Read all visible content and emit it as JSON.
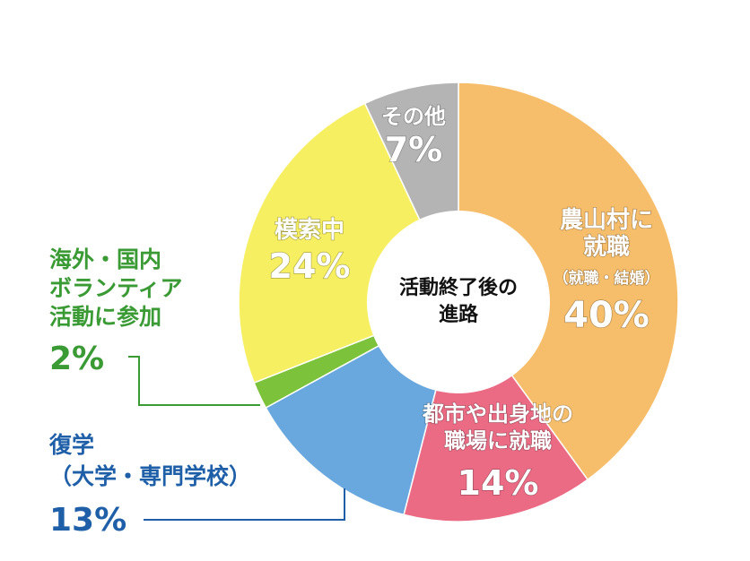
{
  "chart_data": {
    "type": "pie",
    "style": "donut",
    "center_label": [
      "活動終了後の",
      "進路"
    ],
    "slices": [
      {
        "label": [
          "農山村に",
          "就職"
        ],
        "sublabel": "（就職・結婚）",
        "value": 40,
        "value_text": "40%",
        "color": "#F6BE6B"
      },
      {
        "label": [
          "都市や出身地の",
          "職場に就職"
        ],
        "value": 14,
        "value_text": "14%",
        "color": "#EB6A84"
      },
      {
        "label": [
          "復学",
          "（大学・専門学校）"
        ],
        "value": 13,
        "value_text": "13%",
        "color": "#69A8DE"
      },
      {
        "label": [
          "海外・国内",
          "ボランティア",
          "活動に参加"
        ],
        "value": 2,
        "value_text": "2%",
        "color": "#7CC23A"
      },
      {
        "label": [
          "模索中"
        ],
        "value": 24,
        "value_text": "24%",
        "color": "#F6EF61"
      },
      {
        "label": [
          "その他"
        ],
        "value": 7,
        "value_text": "7%",
        "color": "#B4B4B4"
      }
    ],
    "outside_label_colors": {
      "green": "#3A9A34",
      "blue": "#1E5FA8"
    }
  }
}
